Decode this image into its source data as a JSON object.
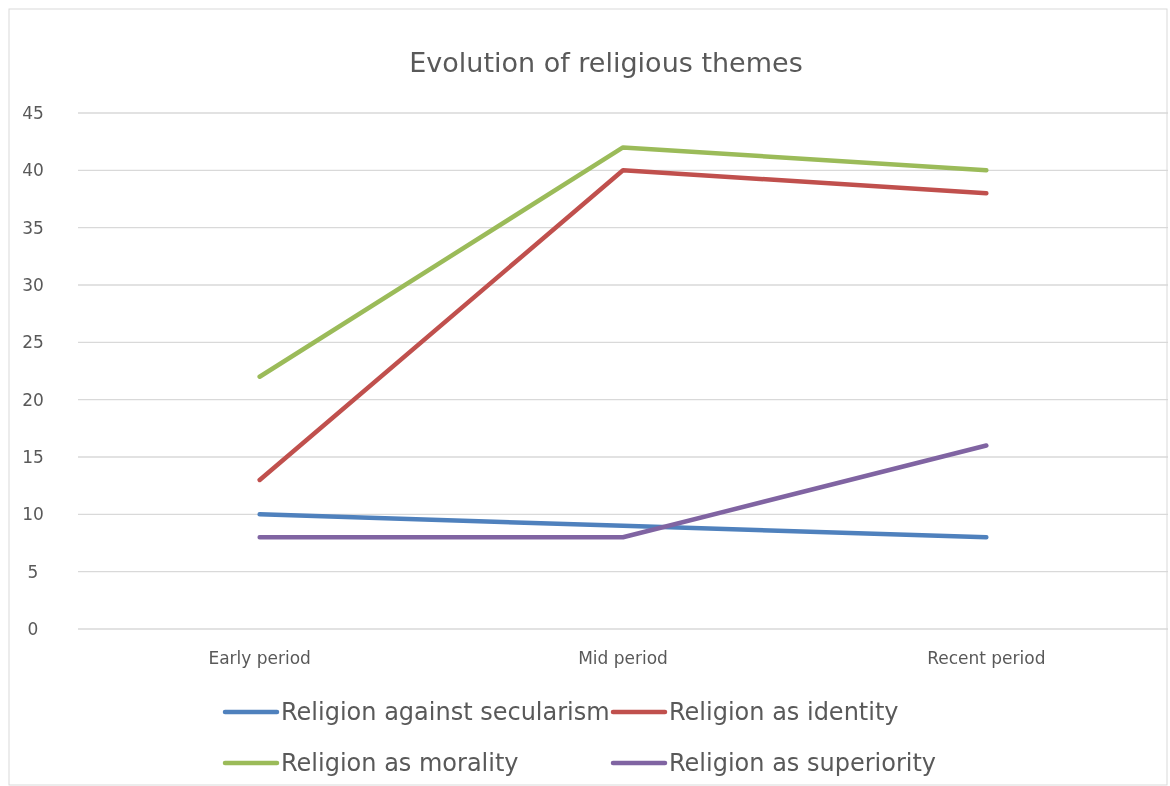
{
  "chart_data": {
    "type": "line",
    "title": "Evolution of religious themes",
    "categories": [
      "Early period",
      "Mid period",
      "Recent period"
    ],
    "series": [
      {
        "name": "Religion against secularism",
        "color": "#4f81bd",
        "values": [
          10,
          9,
          8
        ]
      },
      {
        "name": "Religion as identity",
        "color": "#c0504d",
        "values": [
          13,
          40,
          38
        ]
      },
      {
        "name": "Religion as morality",
        "color": "#9bbb59",
        "values": [
          22,
          42,
          40
        ]
      },
      {
        "name": "Religion as superiority",
        "color": "#8064a2",
        "values": [
          8,
          8,
          16
        ]
      }
    ],
    "ylim": [
      0,
      45
    ],
    "yticks": [
      0,
      5,
      10,
      15,
      20,
      25,
      30,
      35,
      40,
      45
    ],
    "grid": "y",
    "legend": "bottom",
    "marker": "none",
    "line_style": "solid"
  }
}
